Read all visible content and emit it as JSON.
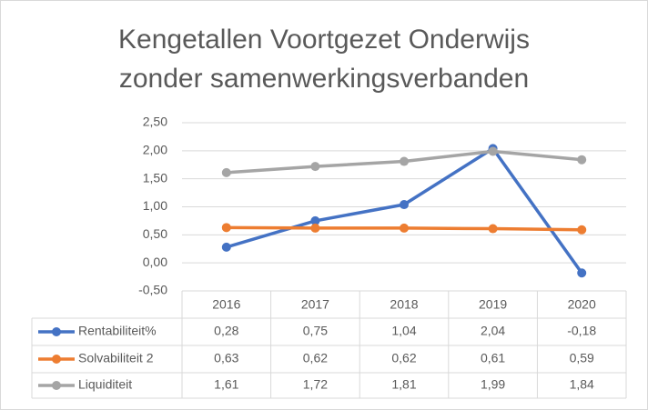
{
  "chart_data": {
    "type": "line",
    "title": [
      "Kengetallen Voortgezet Onderwijs",
      "zonder samenwerkingsverbanden"
    ],
    "categories": [
      "2016",
      "2017",
      "2018",
      "2019",
      "2020"
    ],
    "series": [
      {
        "name": "Rentabiliteit%",
        "color": "#4472c4",
        "values": [
          0.28,
          0.75,
          1.04,
          2.04,
          -0.18
        ],
        "value_labels": [
          "0,28",
          "0,75",
          "1,04",
          "2,04",
          "-0,18"
        ]
      },
      {
        "name": "Solvabiliteit 2",
        "color": "#ed7d31",
        "values": [
          0.63,
          0.62,
          0.62,
          0.61,
          0.59
        ],
        "value_labels": [
          "0,63",
          "0,62",
          "0,62",
          "0,61",
          "0,59"
        ]
      },
      {
        "name": "Liquiditeit",
        "color": "#a5a5a5",
        "values": [
          1.61,
          1.72,
          1.81,
          1.99,
          1.84
        ],
        "value_labels": [
          "1,61",
          "1,72",
          "1,81",
          "1,99",
          "1,84"
        ]
      }
    ],
    "ylim": [
      -0.5,
      2.5
    ],
    "yticks": [
      {
        "value": -0.5,
        "label": "-0,50"
      },
      {
        "value": 0,
        "label": "0,00"
      },
      {
        "value": 0.5,
        "label": "0,50"
      },
      {
        "value": 1,
        "label": "1,00"
      },
      {
        "value": 1.5,
        "label": "1,50"
      },
      {
        "value": 2,
        "label": "2,00"
      },
      {
        "value": 2.5,
        "label": "2,50"
      }
    ],
    "grid": true
  }
}
